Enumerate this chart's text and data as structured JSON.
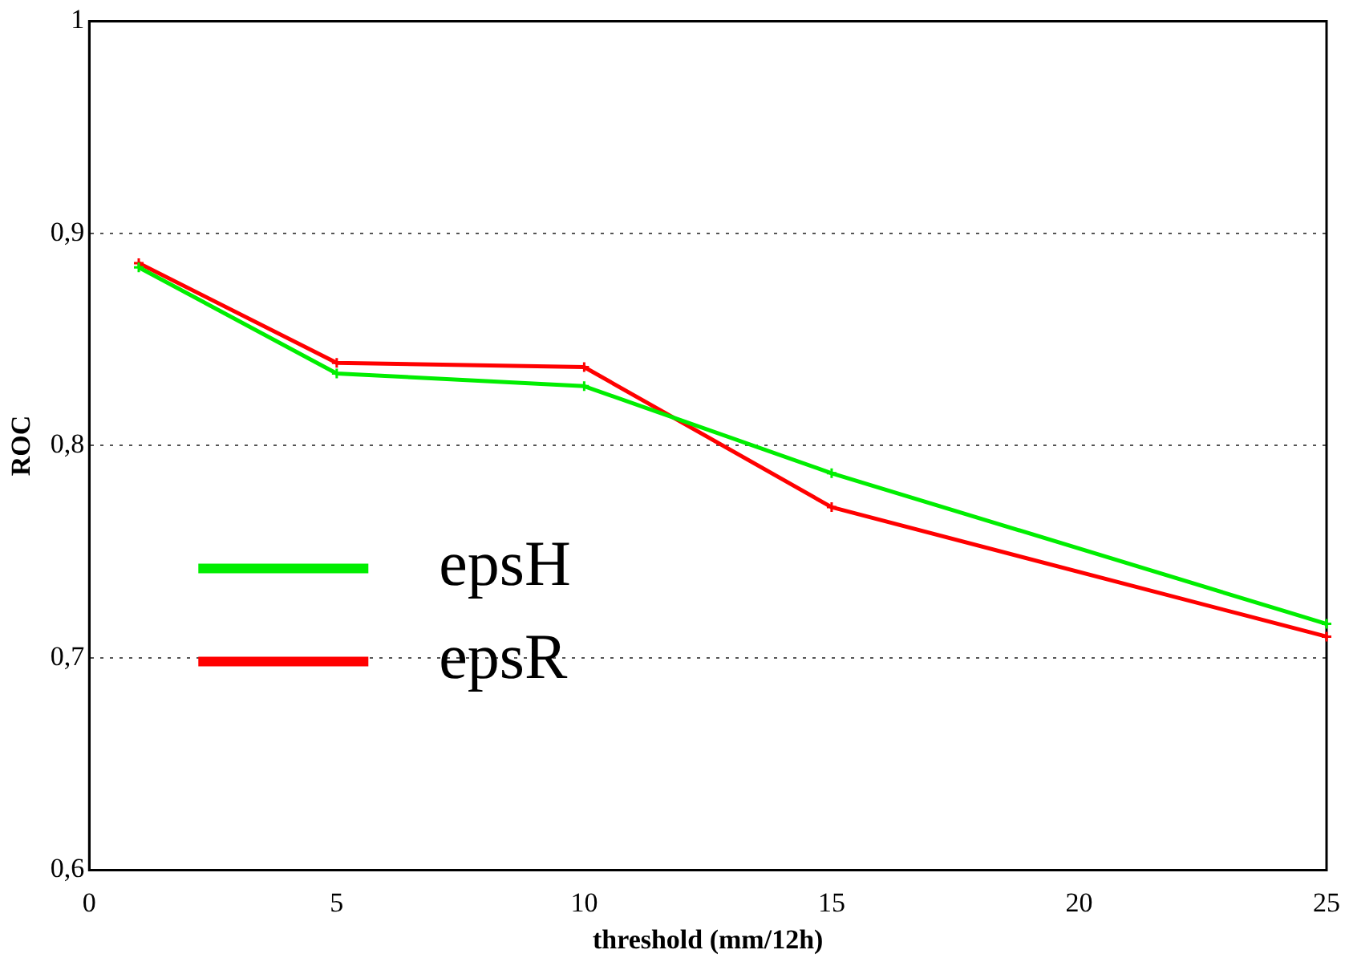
{
  "chart_data": {
    "type": "line",
    "xlabel": "threshold (mm/12h)",
    "ylabel": "ROC",
    "xlim": [
      0,
      25
    ],
    "xticks": [
      0,
      5,
      10,
      15,
      20,
      25
    ],
    "ylim": [
      0.6,
      1
    ],
    "yticks": [
      {
        "value": 0.6,
        "label": "0,6"
      },
      {
        "value": 0.7,
        "label": "0,7"
      },
      {
        "value": 0.8,
        "label": "0,8"
      },
      {
        "value": 0.9,
        "label": "0,9"
      },
      {
        "value": 1,
        "label": "1"
      }
    ],
    "x": [
      1,
      5,
      10,
      15,
      25
    ],
    "series": [
      {
        "name": "epsH",
        "color": "#00ee00",
        "values": [
          0.884,
          0.834,
          0.828,
          0.787,
          0.716
        ]
      },
      {
        "name": "epsR",
        "color": "#ff0000",
        "values": [
          0.886,
          0.839,
          0.837,
          0.771,
          0.71
        ]
      }
    ],
    "grid": "y",
    "legend": "bottom left",
    "marker": "cross",
    "line_style": "solid"
  }
}
